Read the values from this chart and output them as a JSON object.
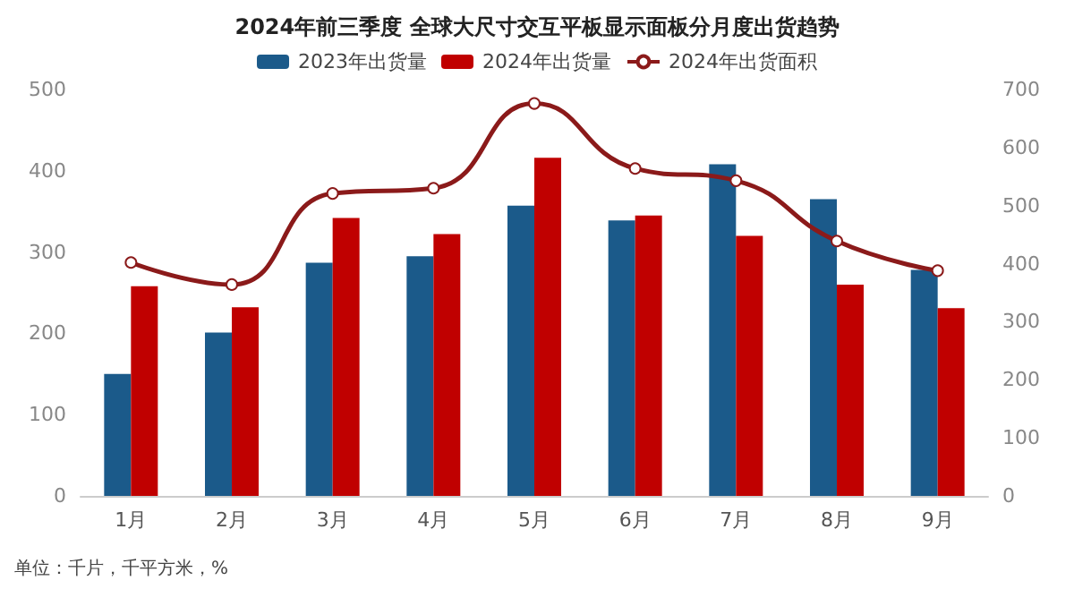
{
  "chart_data": {
    "type": "bar",
    "title": "2024年前三季度 全球大尺寸交互平板显示面板分月度出货趋势",
    "categories": [
      "1月",
      "2月",
      "3月",
      "4月",
      "5月",
      "6月",
      "7月",
      "8月",
      "9月"
    ],
    "series": [
      {
        "name": "2023年出货量",
        "color": "#1b5a8a",
        "values": [
          150,
          201,
          287,
          295,
          357,
          339,
          408,
          365,
          278
        ]
      },
      {
        "name": "2024年出货量",
        "color": "#c00000",
        "values": [
          258,
          232,
          342,
          322,
          416,
          345,
          320,
          260,
          231
        ]
      },
      {
        "name": "2024年出货面积",
        "type": "line",
        "axis": "y2",
        "color": "#8b1a1a",
        "marker": "circle",
        "values": [
          402,
          364,
          521,
          530,
          676,
          564,
          543,
          439,
          388
        ]
      }
    ],
    "ylim": [
      0,
      500
    ],
    "yticks": [
      0,
      100,
      200,
      300,
      400,
      500
    ],
    "y2lim": [
      0,
      700
    ],
    "y2ticks": [
      0,
      100,
      200,
      300,
      400,
      500,
      600,
      700
    ],
    "grid": false,
    "legend": "top",
    "annotations": [
      "单位：千片，千平方米，%"
    ]
  }
}
